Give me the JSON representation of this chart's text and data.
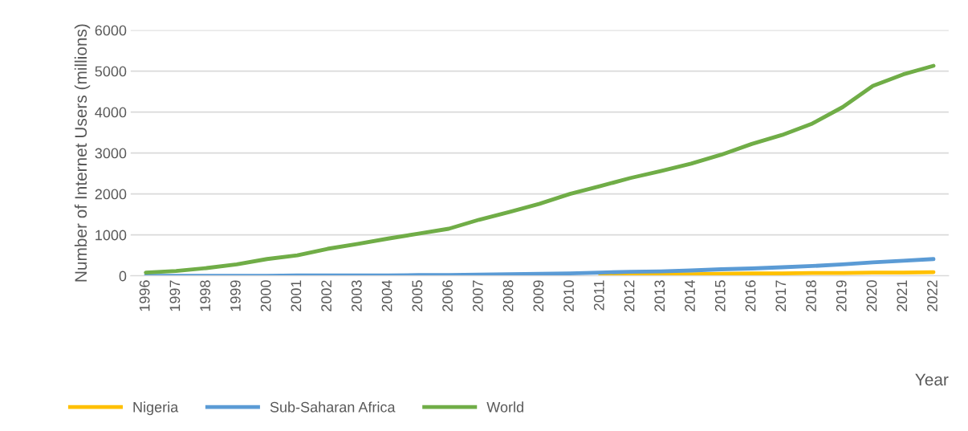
{
  "chart_data": {
    "type": "line",
    "xlabel": "Year",
    "ylabel": "Number of Internet Users (millions)",
    "categories": [
      "1996",
      "1997",
      "1998",
      "1999",
      "2000",
      "2001",
      "2002",
      "2003",
      "2004",
      "2005",
      "2006",
      "2007",
      "2008",
      "2009",
      "2010",
      "2011",
      "2012",
      "2013",
      "2014",
      "2015",
      "2016",
      "2017",
      "2018",
      "2019",
      "2020",
      "2021",
      "2022"
    ],
    "series": [
      {
        "name": "Nigeria",
        "color": "#ffc000",
        "values": [
          null,
          null,
          null,
          null,
          null,
          null,
          null,
          null,
          null,
          null,
          null,
          null,
          null,
          null,
          null,
          30,
          30,
          40,
          40,
          50,
          60,
          60,
          70,
          70,
          80,
          80,
          90
        ]
      },
      {
        "name": "Sub-Saharan Africa",
        "color": "#5b9bd5",
        "values": [
          0,
          0,
          0,
          0,
          0,
          10,
          10,
          10,
          10,
          20,
          20,
          30,
          40,
          50,
          60,
          80,
          100,
          110,
          130,
          160,
          180,
          210,
          240,
          280,
          330,
          370,
          410
        ]
      },
      {
        "name": "World",
        "color": "#70ad47",
        "values": [
          80,
          120,
          190,
          280,
          410,
          500,
          660,
          780,
          910,
          1030,
          1150,
          1370,
          1560,
          1760,
          2000,
          2190,
          2390,
          2560,
          2740,
          2960,
          3220,
          3440,
          3720,
          4120,
          4640,
          4920,
          5130
        ]
      }
    ],
    "ylim": [
      0,
      6000
    ],
    "yticks": [
      0,
      1000,
      2000,
      3000,
      4000,
      5000,
      6000
    ],
    "grid": "y",
    "legend": "bottom left"
  }
}
